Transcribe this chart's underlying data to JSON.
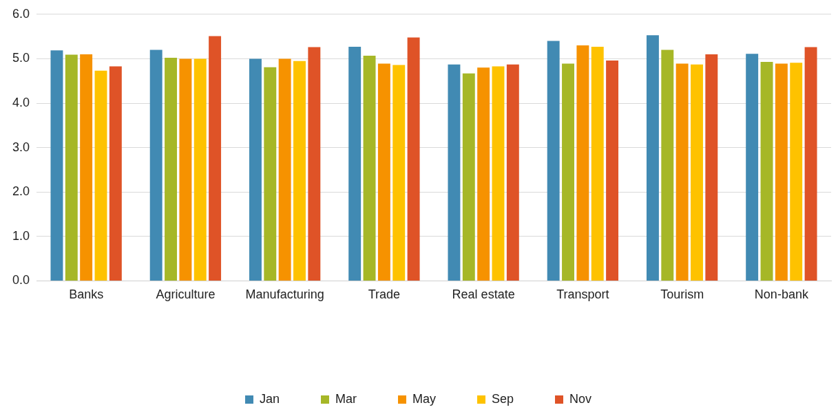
{
  "chart_data": {
    "type": "bar",
    "categories": [
      "Banks",
      "Agriculture",
      "Manufacturing",
      "Trade",
      "Real estate",
      "Transport",
      "Tourism",
      "Non-bank"
    ],
    "series": [
      {
        "name": "Jan",
        "color": "#418ab3",
        "values": [
          5.19,
          5.2,
          5.0,
          5.27,
          4.87,
          5.4,
          5.53,
          5.11
        ]
      },
      {
        "name": "Mar",
        "color": "#a6b727",
        "values": [
          5.09,
          5.02,
          4.81,
          5.07,
          4.67,
          4.89,
          5.2,
          4.93
        ]
      },
      {
        "name": "May",
        "color": "#f69200",
        "values": [
          5.1,
          5.0,
          5.0,
          4.89,
          4.8,
          5.3,
          4.89,
          4.89
        ]
      },
      {
        "name": "Sep",
        "color": "#fec200",
        "values": [
          4.73,
          5.0,
          4.95,
          4.86,
          4.83,
          5.27,
          4.87,
          4.91
        ]
      },
      {
        "name": "Nov",
        "color": "#df5327",
        "values": [
          4.83,
          5.51,
          5.26,
          5.48,
          4.87,
          4.96,
          5.1,
          5.26
        ]
      }
    ],
    "ylim": [
      0,
      6
    ],
    "yticks": [
      {
        "value": 0,
        "label": "0.0"
      },
      {
        "value": 1,
        "label": "1.0"
      },
      {
        "value": 2,
        "label": "2.0"
      },
      {
        "value": 3,
        "label": "3.0"
      },
      {
        "value": 4,
        "label": "4.0"
      },
      {
        "value": 5,
        "label": "5.0"
      },
      {
        "value": 6,
        "label": "6.0"
      }
    ],
    "grid": "y",
    "legend": "bottom"
  }
}
